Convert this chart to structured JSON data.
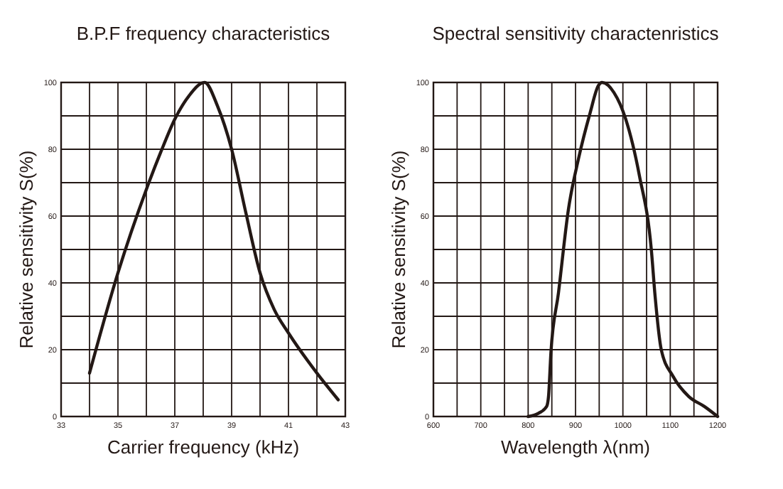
{
  "chart_data": [
    {
      "type": "line",
      "title": "B.P.F frequency characteristics",
      "xlabel": "Carrier frequency (kHz)",
      "ylabel": "Relative sensitivity  S(%)",
      "xlim": [
        33,
        43
      ],
      "xticks": [
        33,
        {
          "value": 34,
          "label": null
        },
        35,
        {
          "value": 36,
          "label": null
        },
        37,
        {
          "value": 38,
          "label": null
        },
        39,
        {
          "value": 40,
          "label": null
        },
        41,
        {
          "value": 42,
          "label": null
        },
        43
      ],
      "ylim": [
        0,
        100
      ],
      "yticks": [
        0,
        {
          "value": 10,
          "label": null
        },
        20,
        {
          "value": 30,
          "label": null
        },
        40,
        {
          "value": 50,
          "label": null
        },
        60,
        {
          "value": 70,
          "label": null
        },
        80,
        {
          "value": 90,
          "label": null
        },
        100
      ],
      "grid": true,
      "marker": "none",
      "line_style": "solid",
      "series": [
        {
          "color": "#231815",
          "x": [
            34,
            35,
            36,
            36.5,
            37,
            37.5,
            38.05,
            38.5,
            39,
            39.5,
            40,
            40.5,
            41,
            42,
            42.75
          ],
          "values": [
            13,
            43,
            68,
            79,
            89,
            96,
            100,
            93,
            80,
            61,
            43,
            32,
            25,
            13,
            5
          ]
        }
      ]
    },
    {
      "type": "line",
      "title": "Spectral sensitivity charactenristics",
      "xlabel": "Wavelength  λ(nm)",
      "ylabel": "Relative sensitivity  S(%)",
      "xlim": [
        600,
        1200
      ],
      "xticks": [
        600,
        {
          "value": 650,
          "label": null
        },
        700,
        {
          "value": 750,
          "label": null
        },
        800,
        {
          "value": 850,
          "label": null
        },
        900,
        {
          "value": 950,
          "label": null
        },
        1000,
        {
          "value": 1050,
          "label": null
        },
        1100,
        {
          "value": 1150,
          "label": null
        },
        1200
      ],
      "ylim": [
        0,
        100
      ],
      "yticks": [
        0,
        {
          "value": 10,
          "label": null
        },
        20,
        {
          "value": 30,
          "label": null
        },
        40,
        {
          "value": 50,
          "label": null
        },
        60,
        {
          "value": 70,
          "label": null
        },
        80,
        {
          "value": 90,
          "label": null
        },
        100
      ],
      "grid": true,
      "marker": "none",
      "line_style": "solid",
      "series": [
        {
          "color": "#231815",
          "x": [
            800,
            822,
            839,
            843,
            848,
            864,
            885,
            906,
            931,
            948,
            956,
            981,
            1006,
            1035,
            1060,
            1068,
            1081,
            1106,
            1139,
            1172,
            1200
          ],
          "values": [
            0,
            1,
            3,
            6,
            19,
            37,
            62,
            77,
            91,
            99,
            100,
            97,
            89,
            72,
            50,
            36,
            20,
            12,
            6,
            3,
            0
          ]
        }
      ]
    }
  ]
}
